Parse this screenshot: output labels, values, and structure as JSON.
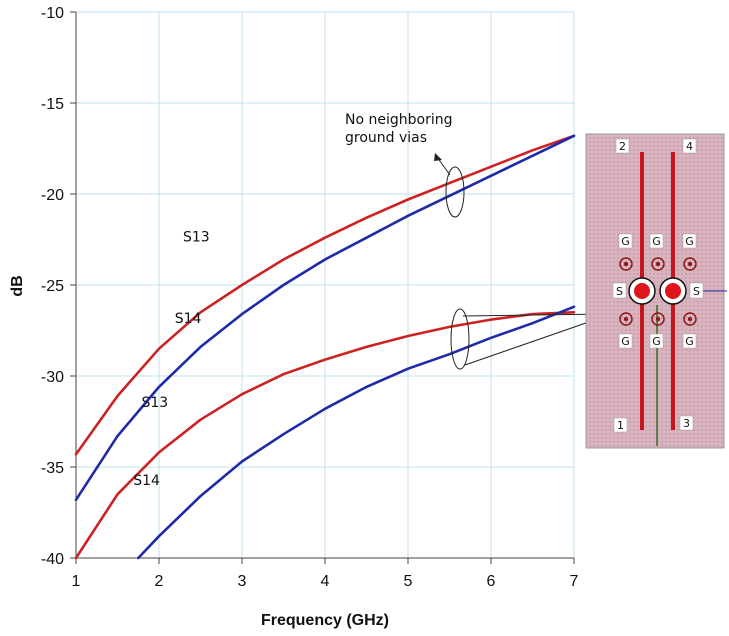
{
  "chart_data": {
    "type": "line",
    "xlabel": "Frequency (GHz)",
    "ylabel": "dB",
    "xlim": [
      1,
      7
    ],
    "ylim": [
      -40,
      -10
    ],
    "xticks": [
      "1",
      "2",
      "3",
      "4",
      "5",
      "6",
      "7"
    ],
    "yticks": [
      "-10",
      "-15",
      "-20",
      "-25",
      "-30",
      "-35",
      "-40"
    ],
    "grid": true,
    "colors": {
      "S13": "#cc2222",
      "S14": "#1f2aa8"
    },
    "series": [
      {
        "name": "S13",
        "group": "no-neighboring-ground-vias",
        "x": [
          1,
          1.5,
          2,
          2.5,
          3,
          3.5,
          4,
          4.5,
          5,
          5.5,
          6,
          6.5,
          7
        ],
        "y": [
          -34.3,
          -31.1,
          -28.5,
          -26.5,
          -25.0,
          -23.6,
          -22.4,
          -21.3,
          -20.3,
          -19.4,
          -18.5,
          -17.6,
          -16.8
        ]
      },
      {
        "name": "S14",
        "group": "no-neighboring-ground-vias",
        "x": [
          1,
          1.5,
          2,
          2.5,
          3,
          3.5,
          4,
          4.5,
          5,
          5.5,
          6,
          6.5,
          7
        ],
        "y": [
          -36.8,
          -33.3,
          -30.6,
          -28.4,
          -26.6,
          -25.0,
          -23.6,
          -22.4,
          -21.2,
          -20.1,
          -19.0,
          -17.9,
          -16.8
        ]
      },
      {
        "name": "S13",
        "group": "with-ground-vias",
        "x": [
          1,
          1.5,
          2,
          2.5,
          3,
          3.5,
          4,
          4.5,
          5,
          5.5,
          6,
          6.5,
          7
        ],
        "y": [
          -40.0,
          -36.5,
          -34.2,
          -32.4,
          -31.0,
          -29.9,
          -29.1,
          -28.4,
          -27.8,
          -27.3,
          -26.9,
          -26.6,
          -26.5
        ]
      },
      {
        "name": "S14",
        "group": "with-ground-vias",
        "x": [
          1.75,
          2,
          2.5,
          3,
          3.5,
          4,
          4.5,
          5,
          5.5,
          6,
          6.5,
          7
        ],
        "y": [
          -40.0,
          -38.8,
          -36.6,
          -34.7,
          -33.2,
          -31.8,
          -30.6,
          -29.6,
          -28.8,
          -27.9,
          -27.1,
          -26.2
        ]
      }
    ],
    "labels": [
      {
        "text": "S13",
        "x": 2.45,
        "y": -22.6
      },
      {
        "text": "S14",
        "x": 2.35,
        "y": -27.1
      },
      {
        "text": "S13",
        "x": 1.95,
        "y": -31.7
      },
      {
        "text": "S14",
        "x": 1.85,
        "y": -36.0
      }
    ],
    "annotation": {
      "lines": [
        "No neighboring",
        "ground vias"
      ]
    },
    "inset": {
      "ports": [
        "2",
        "4",
        "1",
        "3"
      ],
      "row_labels_top": [
        "G",
        "G",
        "G"
      ],
      "row_labels_bottom": [
        "G",
        "G",
        "G"
      ],
      "signal_labels": [
        "S",
        "S"
      ]
    }
  }
}
